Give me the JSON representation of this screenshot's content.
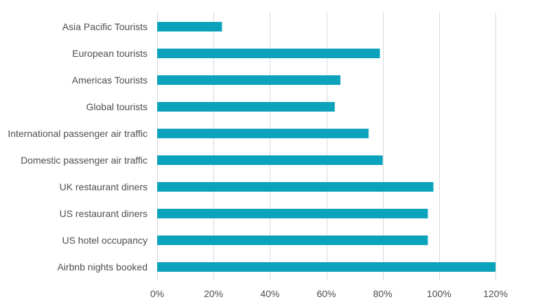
{
  "chart_data": {
    "type": "bar",
    "orientation": "horizontal",
    "title": "",
    "xlabel": "",
    "ylabel": "",
    "xlim": [
      0,
      120
    ],
    "x_ticks": [
      0,
      20,
      40,
      60,
      80,
      100,
      120
    ],
    "x_tick_labels": [
      "0%",
      "20%",
      "40%",
      "60%",
      "80%",
      "100%",
      "120%"
    ],
    "grid": true,
    "legend": "none",
    "categories": [
      "Asia Pacific Tourists",
      "European tourists",
      "Americas Tourists",
      "Global tourists",
      "International passenger air traffic",
      "Domestic passenger air traffic",
      "UK restaurant diners",
      "US restaurant diners",
      "US hotel occupancy",
      "Airbnb nights booked"
    ],
    "values": [
      23,
      79,
      65,
      63,
      75,
      80,
      98,
      96,
      96,
      120
    ],
    "bar_color": "#0aa3bb"
  }
}
